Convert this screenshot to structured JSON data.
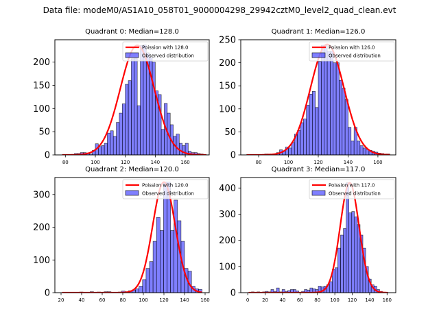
{
  "suptitle": "Data file: modeM0/AS1A10_058T01_9000004298_29942cztM0_level2_quad_clean.evt",
  "chart_data": [
    {
      "type": "bar",
      "title": "Quadrant 0: Median=128.0",
      "legend": {
        "line_label": "Poission with 128.0",
        "bar_label": "Observed distribution",
        "placement": "top-right"
      },
      "xlim": [
        73,
        176
      ],
      "ylim": [
        0,
        248
      ],
      "xticks": [
        80,
        100,
        120,
        140,
        160
      ],
      "yticks": [
        0,
        50,
        100,
        150,
        200
      ],
      "bin_width": 2,
      "bins_start": 78,
      "values": [
        1,
        1,
        1,
        1,
        3,
        3,
        5,
        5,
        3,
        2,
        10,
        24,
        18,
        20,
        25,
        47,
        52,
        40,
        70,
        90,
        110,
        152,
        160,
        207,
        208,
        106,
        236,
        237,
        220,
        210,
        200,
        138,
        130,
        55,
        111,
        90,
        65,
        40,
        45,
        25,
        20,
        25,
        8,
        5,
        5,
        3,
        2,
        1
      ],
      "poisson_mean": 128.0,
      "poisson_peak": 236,
      "bar_color": "#0000ff",
      "bar_alpha": 0.5,
      "line_color": "#ff0000"
    },
    {
      "type": "bar",
      "title": "Quadrant 1: Median=126.0",
      "legend": {
        "line_label": "Poission with 126.0",
        "bar_label": "Observed distribution",
        "placement": "top-right"
      },
      "xlim": [
        68,
        172
      ],
      "ylim": [
        0,
        250
      ],
      "xticks": [
        80,
        100,
        120,
        140,
        160
      ],
      "yticks": [
        0,
        50,
        100,
        150,
        200,
        250
      ],
      "bin_width": 2,
      "bins_start": 72,
      "values": [
        1,
        1,
        1,
        1,
        1,
        1,
        2,
        2,
        2,
        2,
        5,
        11,
        8,
        17,
        15,
        27,
        45,
        53,
        70,
        78,
        108,
        132,
        138,
        103,
        203,
        238,
        238,
        225,
        225,
        200,
        200,
        162,
        145,
        120,
        60,
        30,
        60,
        30,
        20,
        15,
        12,
        10,
        8,
        6,
        4,
        3,
        2,
        2
      ],
      "poisson_mean": 126.0,
      "poisson_peak": 240,
      "bar_color": "#0000ff",
      "bar_alpha": 0.5,
      "line_color": "#ff0000"
    },
    {
      "type": "bar",
      "title": "Quadrant 2: Median=120.0",
      "legend": {
        "line_label": "Poission with 120.0",
        "bar_label": "Observed distribution",
        "placement": "top-right"
      },
      "xlim": [
        14,
        164
      ],
      "ylim": [
        0,
        352
      ],
      "xticks": [
        20,
        40,
        60,
        80,
        100,
        120,
        140,
        160
      ],
      "yticks": [
        0,
        100,
        200,
        300
      ],
      "bin_width": 3.4,
      "bins_start": 21,
      "values": [
        1,
        1,
        1,
        1,
        1,
        2,
        1,
        1,
        3,
        1,
        2,
        1,
        3,
        3,
        1,
        1,
        2,
        5,
        3,
        6,
        8,
        12,
        20,
        40,
        74,
        95,
        157,
        230,
        190,
        338,
        338,
        190,
        283,
        220,
        157,
        74,
        66,
        20,
        12,
        10
      ],
      "poisson_mean": 120.0,
      "poisson_peak": 338,
      "bar_color": "#0000ff",
      "bar_alpha": 0.5,
      "line_color": "#ff0000"
    },
    {
      "type": "bar",
      "title": "Quadrant 3: Median=117.0",
      "legend": {
        "line_label": "Poission with 117.0",
        "bar_label": "Observed distribution",
        "placement": "top-right"
      },
      "xlim": [
        -8,
        170
      ],
      "ylim": [
        0,
        440
      ],
      "xticks": [
        0,
        20,
        40,
        60,
        80,
        100,
        120,
        140,
        160
      ],
      "yticks": [
        0,
        100,
        200,
        300,
        400
      ],
      "bin_width": 3.2,
      "bins_start": 1,
      "values": [
        1,
        3,
        1,
        3,
        1,
        3,
        5,
        3,
        12,
        5,
        18,
        3,
        12,
        5,
        8,
        12,
        12,
        7,
        2,
        5,
        12,
        10,
        18,
        15,
        12,
        25,
        22,
        25,
        30,
        42,
        88,
        95,
        170,
        220,
        245,
        420,
        305,
        310,
        290,
        260,
        220,
        170,
        100,
        52,
        30,
        25,
        12,
        5,
        2,
        1
      ],
      "poisson_mean": 117.0,
      "poisson_peak": 420,
      "bar_color": "#0000ff",
      "bar_alpha": 0.5,
      "line_color": "#ff0000"
    }
  ]
}
